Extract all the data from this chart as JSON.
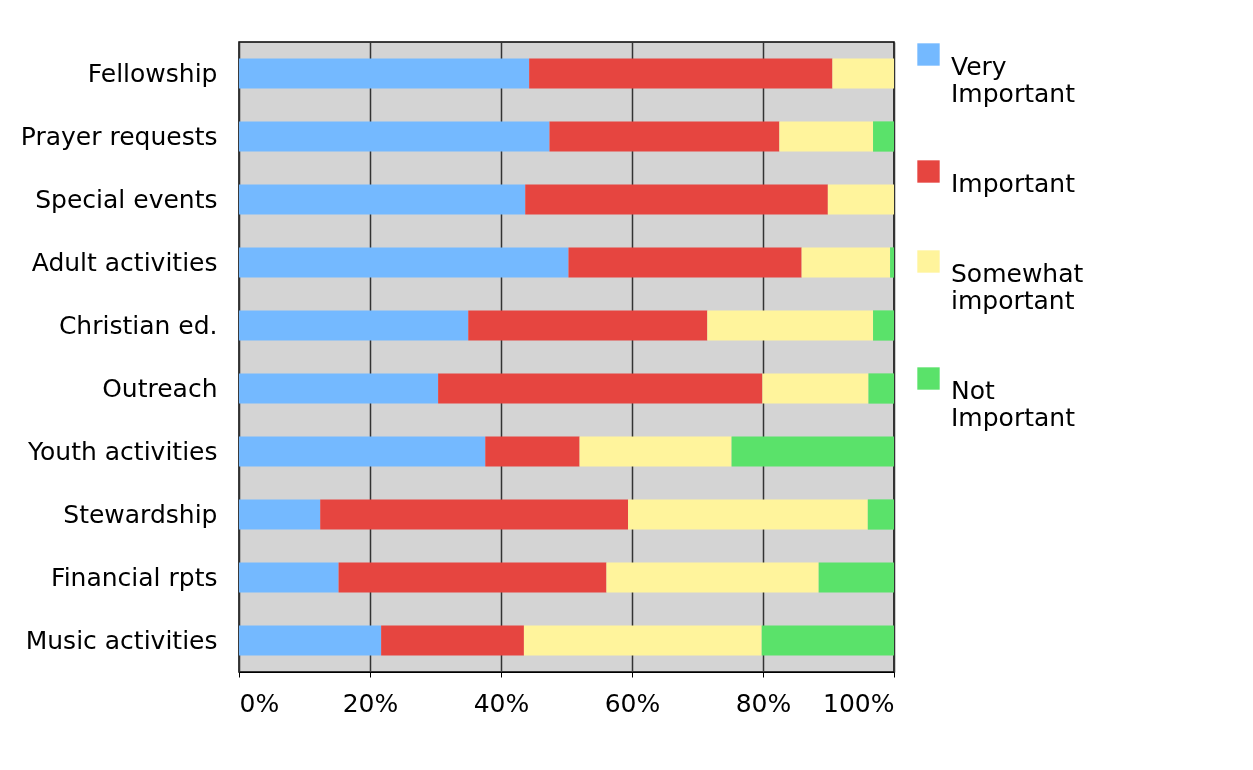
{
  "chart_data": {
    "type": "bar",
    "orientation": "horizontal",
    "stacked": true,
    "categories": [
      "Fellowship",
      "Prayer requests",
      "Special events",
      "Adult activities",
      "Christian ed.",
      "Outreach",
      "Youth activities",
      "Stewardship",
      "Financial rpts",
      "Music activities"
    ],
    "series": [
      {
        "name": "Very Important",
        "color": "#74b9ff",
        "values": [
          44.3,
          47.4,
          43.7,
          50.3,
          35.0,
          30.4,
          37.6,
          12.4,
          15.2,
          21.7
        ]
      },
      {
        "name": "Important",
        "color": "#e64540",
        "values": [
          46.3,
          35.1,
          46.2,
          35.6,
          36.5,
          49.5,
          14.4,
          47.0,
          40.9,
          21.8
        ]
      },
      {
        "name": "Somewhat important",
        "color": "#fff49c",
        "values": [
          9.4,
          14.3,
          10.1,
          13.5,
          25.3,
          16.2,
          23.2,
          36.6,
          32.4,
          36.3
        ]
      },
      {
        "name": "Not Important",
        "color": "#5ae26a",
        "values": [
          0,
          3.2,
          0,
          0.6,
          3.2,
          3.9,
          24.8,
          4.0,
          11.5,
          20.2
        ]
      }
    ],
    "xlim": [
      0,
      100
    ],
    "xticks": [
      {
        "value": 0,
        "label": "0%"
      },
      {
        "value": 20,
        "label": "20%"
      },
      {
        "value": 40,
        "label": "40%"
      },
      {
        "value": 60,
        "label": "60%"
      },
      {
        "value": 80,
        "label": "80%"
      },
      {
        "value": 100,
        "label": "100%"
      }
    ],
    "grid": "x",
    "legend": "right"
  }
}
